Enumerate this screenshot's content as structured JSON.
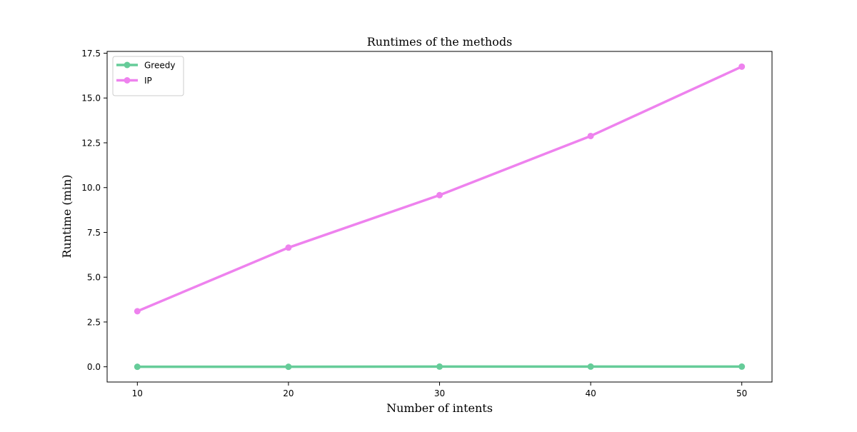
{
  "chart_data": {
    "type": "line",
    "title": "Runtimes of the methods",
    "xlabel": "Number of intents",
    "ylabel": "Runtime (min)",
    "x": [
      10,
      20,
      30,
      40,
      50
    ],
    "x_ticks": [
      "10",
      "20",
      "30",
      "40",
      "50"
    ],
    "y_ticks": [
      "0.0",
      "2.5",
      "5.0",
      "7.5",
      "10.0",
      "12.5",
      "15.0",
      "17.5"
    ],
    "xlim": [
      8,
      52
    ],
    "ylim": [
      -0.85,
      17.6
    ],
    "grid": false,
    "legend_position": "top-left",
    "series": [
      {
        "name": "Greedy",
        "color": "#66cc99",
        "marker": "circle",
        "values": [
          0.0,
          0.0,
          0.01,
          0.01,
          0.01
        ]
      },
      {
        "name": "IP",
        "color": "#ee82ee",
        "marker": "circle",
        "values": [
          3.1,
          6.65,
          9.58,
          12.88,
          16.75
        ]
      }
    ]
  }
}
